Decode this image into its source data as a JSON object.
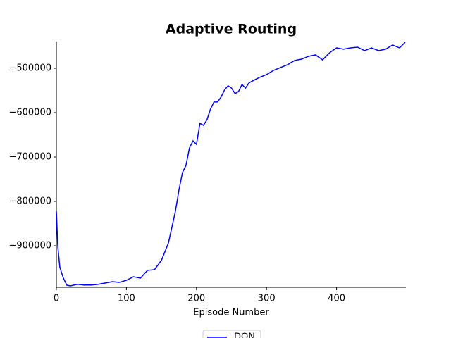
{
  "chart_data": {
    "type": "line",
    "title": "Adaptive Routing",
    "x_label": "Episode Number",
    "x": [
      0,
      2,
      5,
      10,
      15,
      20,
      30,
      40,
      50,
      60,
      70,
      80,
      90,
      100,
      110,
      120,
      130,
      140,
      150,
      160,
      170,
      175,
      180,
      185,
      190,
      195,
      200,
      205,
      210,
      215,
      220,
      225,
      230,
      235,
      240,
      245,
      250,
      255,
      260,
      265,
      270,
      275,
      280,
      290,
      300,
      310,
      320,
      330,
      340,
      350,
      360,
      370,
      380,
      390,
      400,
      410,
      420,
      430,
      440,
      450,
      460,
      470,
      480,
      490,
      498
    ],
    "series": [
      {
        "name": "DQN",
        "color": "#0000ff",
        "values": [
          -822000,
          -901600,
          -949000,
          -973000,
          -989000,
          -990500,
          -987000,
          -988500,
          -988500,
          -987000,
          -984000,
          -981000,
          -982500,
          -978000,
          -970000,
          -973000,
          -955500,
          -954000,
          -933000,
          -893500,
          -822000,
          -774500,
          -735000,
          -719000,
          -679500,
          -663500,
          -671500,
          -624000,
          -628500,
          -616000,
          -592000,
          -576000,
          -576000,
          -565000,
          -549000,
          -539500,
          -544500,
          -557000,
          -552500,
          -536500,
          -544500,
          -533000,
          -528500,
          -520500,
          -514300,
          -504800,
          -498400,
          -492000,
          -482500,
          -479400,
          -473000,
          -469800,
          -481000,
          -465000,
          -454000,
          -457000,
          -454000,
          -452400,
          -460300,
          -454000,
          -460300,
          -457000,
          -447600,
          -454000,
          -441300
        ]
      }
    ],
    "xlim": [
      0,
      499
    ],
    "xticks": [
      0,
      100,
      200,
      300,
      400
    ],
    "ylim": [
      -993700,
      -439700
    ],
    "yticks": [
      {
        "value": -900000,
        "label": "−900000"
      },
      {
        "value": -800000,
        "label": "−800000"
      },
      {
        "value": -700000,
        "label": "−700000"
      },
      {
        "value": -600000,
        "label": "−600000"
      },
      {
        "value": -500000,
        "label": "−500000"
      }
    ],
    "grid": false,
    "legend": "lower center"
  }
}
